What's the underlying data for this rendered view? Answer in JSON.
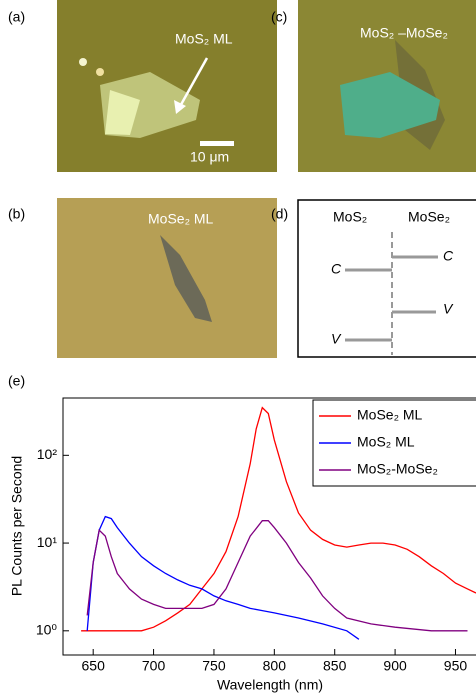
{
  "panels": {
    "a": {
      "label": "(a)",
      "caption": "MoS₂ ML",
      "scale_bar": "10 μm"
    },
    "b": {
      "label": "(b)",
      "caption": "MoSe₂ ML"
    },
    "c": {
      "label": "(c)",
      "caption": "MoS₂ –MoSe₂"
    },
    "d": {
      "label": "(d)",
      "left_header": "MoS₂",
      "right_header": "MoSe₂",
      "left_c": "C",
      "left_v": "V",
      "right_c": "C",
      "right_v": "V"
    },
    "e": {
      "label": "(e)"
    }
  },
  "chart_data": {
    "type": "line",
    "x_label": "Wavelength (nm)",
    "y_label": "PL Counts per Second",
    "log_y": true,
    "legend": "upper right",
    "xlim": [
      625,
      967
    ],
    "xticks": [
      650,
      700,
      750,
      800,
      850,
      900,
      950
    ],
    "ylim": [
      0.53,
      450
    ],
    "yticks": [
      {
        "value": 1,
        "label": "10⁰"
      },
      {
        "value": 10,
        "label": "10¹"
      },
      {
        "value": 100,
        "label": "10²"
      }
    ],
    "series": [
      {
        "name": "MoSe₂ ML",
        "color": "#ff0000",
        "x": [
          640,
          650,
          660,
          670,
          680,
          690,
          700,
          710,
          720,
          730,
          740,
          750,
          760,
          770,
          780,
          785,
          790,
          795,
          800,
          810,
          820,
          830,
          840,
          850,
          860,
          870,
          880,
          890,
          900,
          910,
          920,
          930,
          940,
          950,
          960,
          967
        ],
        "values": [
          1,
          1,
          1,
          1,
          1,
          1,
          1.1,
          1.3,
          1.6,
          2,
          3,
          4.5,
          8,
          20,
          80,
          200,
          350,
          300,
          150,
          50,
          22,
          14,
          11,
          9.5,
          9,
          9.5,
          10,
          10,
          9.5,
          8.5,
          7,
          5.5,
          4.5,
          3.5,
          3,
          2.7
        ]
      },
      {
        "name": "MoS₂ ML",
        "color": "#0000ff",
        "x": [
          645,
          650,
          655,
          660,
          665,
          670,
          680,
          690,
          700,
          710,
          720,
          730,
          740,
          750,
          760,
          770,
          780,
          790,
          800,
          820,
          840,
          860,
          870
        ],
        "values": [
          1,
          6,
          14,
          20,
          19,
          15,
          10,
          7,
          5.5,
          4.5,
          3.8,
          3.3,
          3,
          2.5,
          2.2,
          2,
          1.8,
          1.7,
          1.6,
          1.4,
          1.2,
          1,
          0.8
        ]
      },
      {
        "name": "MoS₂-MoSe₂",
        "color": "#800080",
        "x": [
          645,
          650,
          655,
          660,
          665,
          670,
          680,
          690,
          700,
          710,
          720,
          740,
          750,
          760,
          770,
          780,
          790,
          795,
          800,
          810,
          820,
          830,
          840,
          850,
          860,
          880,
          900,
          930,
          960
        ],
        "values": [
          1.5,
          6,
          14,
          12,
          7,
          4.5,
          3,
          2.3,
          2,
          1.8,
          1.8,
          1.8,
          2,
          3,
          6,
          12,
          18,
          18,
          15,
          10,
          6,
          4,
          2.5,
          1.8,
          1.4,
          1.2,
          1.1,
          1,
          1
        ]
      }
    ]
  }
}
